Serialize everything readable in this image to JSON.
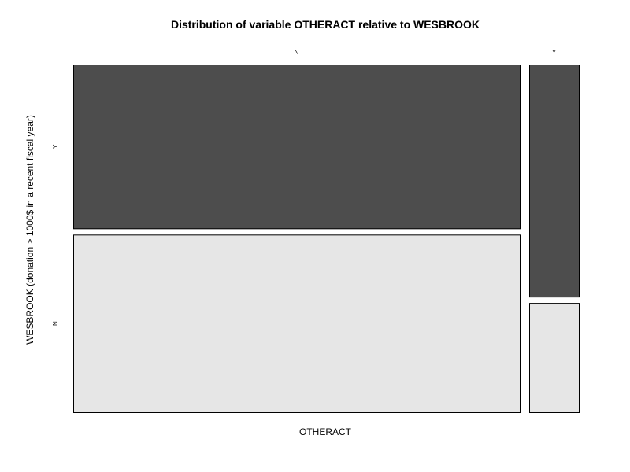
{
  "chart_data": {
    "type": "mosaic",
    "title": "Distribution of variable OTHERACT relative to WESBROOK",
    "xlabel": "OTHERACT",
    "ylabel": "WESBROOK (donation > 1000$ in a recent fiscal year)",
    "x_categories": [
      "N",
      "Y"
    ],
    "y_categories": [
      "Y",
      "N"
    ],
    "x_proportions": [
      0.9,
      0.1
    ],
    "conditional_proportions": {
      "N": {
        "Y": 0.48,
        "N": 0.52
      },
      "Y": {
        "Y": 0.68,
        "N": 0.32
      }
    },
    "colors": {
      "Y": "#4d4d4d",
      "N": "#e6e6e6"
    },
    "grid": false,
    "legend": "none"
  }
}
